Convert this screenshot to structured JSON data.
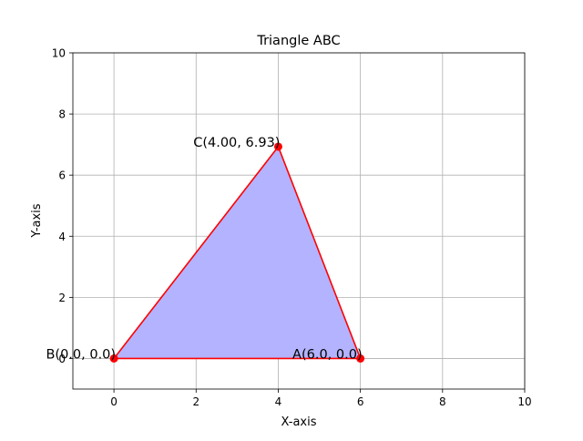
{
  "chart_data": {
    "type": "scatter",
    "title": "Triangle ABC",
    "xlabel": "X-axis",
    "ylabel": "Y-axis",
    "xlim": [
      -1,
      10
    ],
    "ylim": [
      -1,
      10
    ],
    "xticks": [
      0,
      2,
      4,
      6,
      8,
      10
    ],
    "yticks": [
      0,
      2,
      4,
      6,
      8,
      10
    ],
    "grid": true,
    "fill_color": "#b3b3ff",
    "line_color": "#ff0000",
    "point_color": "#ff0000",
    "points": [
      {
        "id": "A",
        "x": 6.0,
        "y": 0.0,
        "label": "A(6.0, 0.0)",
        "anchor": "end"
      },
      {
        "id": "B",
        "x": 0.0,
        "y": 0.0,
        "label": "B(0.0, 0.0)",
        "anchor": "end"
      },
      {
        "id": "C",
        "x": 4.0,
        "y": 6.93,
        "label": "C(4.00, 6.93)",
        "anchor": "end"
      }
    ]
  }
}
